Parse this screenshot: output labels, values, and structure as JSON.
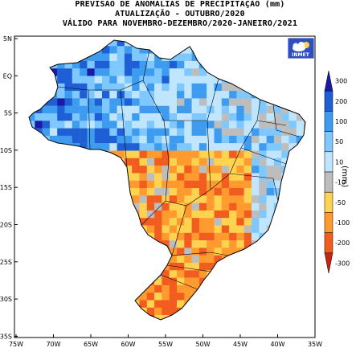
{
  "header": {
    "line1": "PREVISÃO DE ANOMALIAS DE PRECIPITAÇÃO (mm)",
    "line2": "ATUALIZAÇÃO - OUTUBRO/2020",
    "line3": "VÁLIDO PARA NOVEMBRO-DEZEMBRO/2020-JANEIRO/2021"
  },
  "logo": {
    "text": "INMET",
    "icon": "cloud-sun-icon"
  },
  "axes": {
    "lat_labels": [
      "5N",
      "EQ",
      "5S",
      "10S",
      "15S",
      "20S",
      "25S",
      "30S",
      "35S"
    ],
    "lon_labels": [
      "75W",
      "70W",
      "65W",
      "60W",
      "55W",
      "50W",
      "45W",
      "40W",
      "35W"
    ]
  },
  "colorbar": {
    "unit": "(mm)",
    "labels": [
      "300",
      "200",
      "100",
      "50",
      "10",
      "-10",
      "-50",
      "-100",
      "-200",
      "-300"
    ],
    "colors": [
      "#1a1aa6",
      "#1e5fd6",
      "#3e9cf0",
      "#7ec8ff",
      "#c0e6ff",
      "#bdbdbd",
      "#ffd34f",
      "#ff9a2e",
      "#f25c1e",
      "#c8230f"
    ]
  }
}
